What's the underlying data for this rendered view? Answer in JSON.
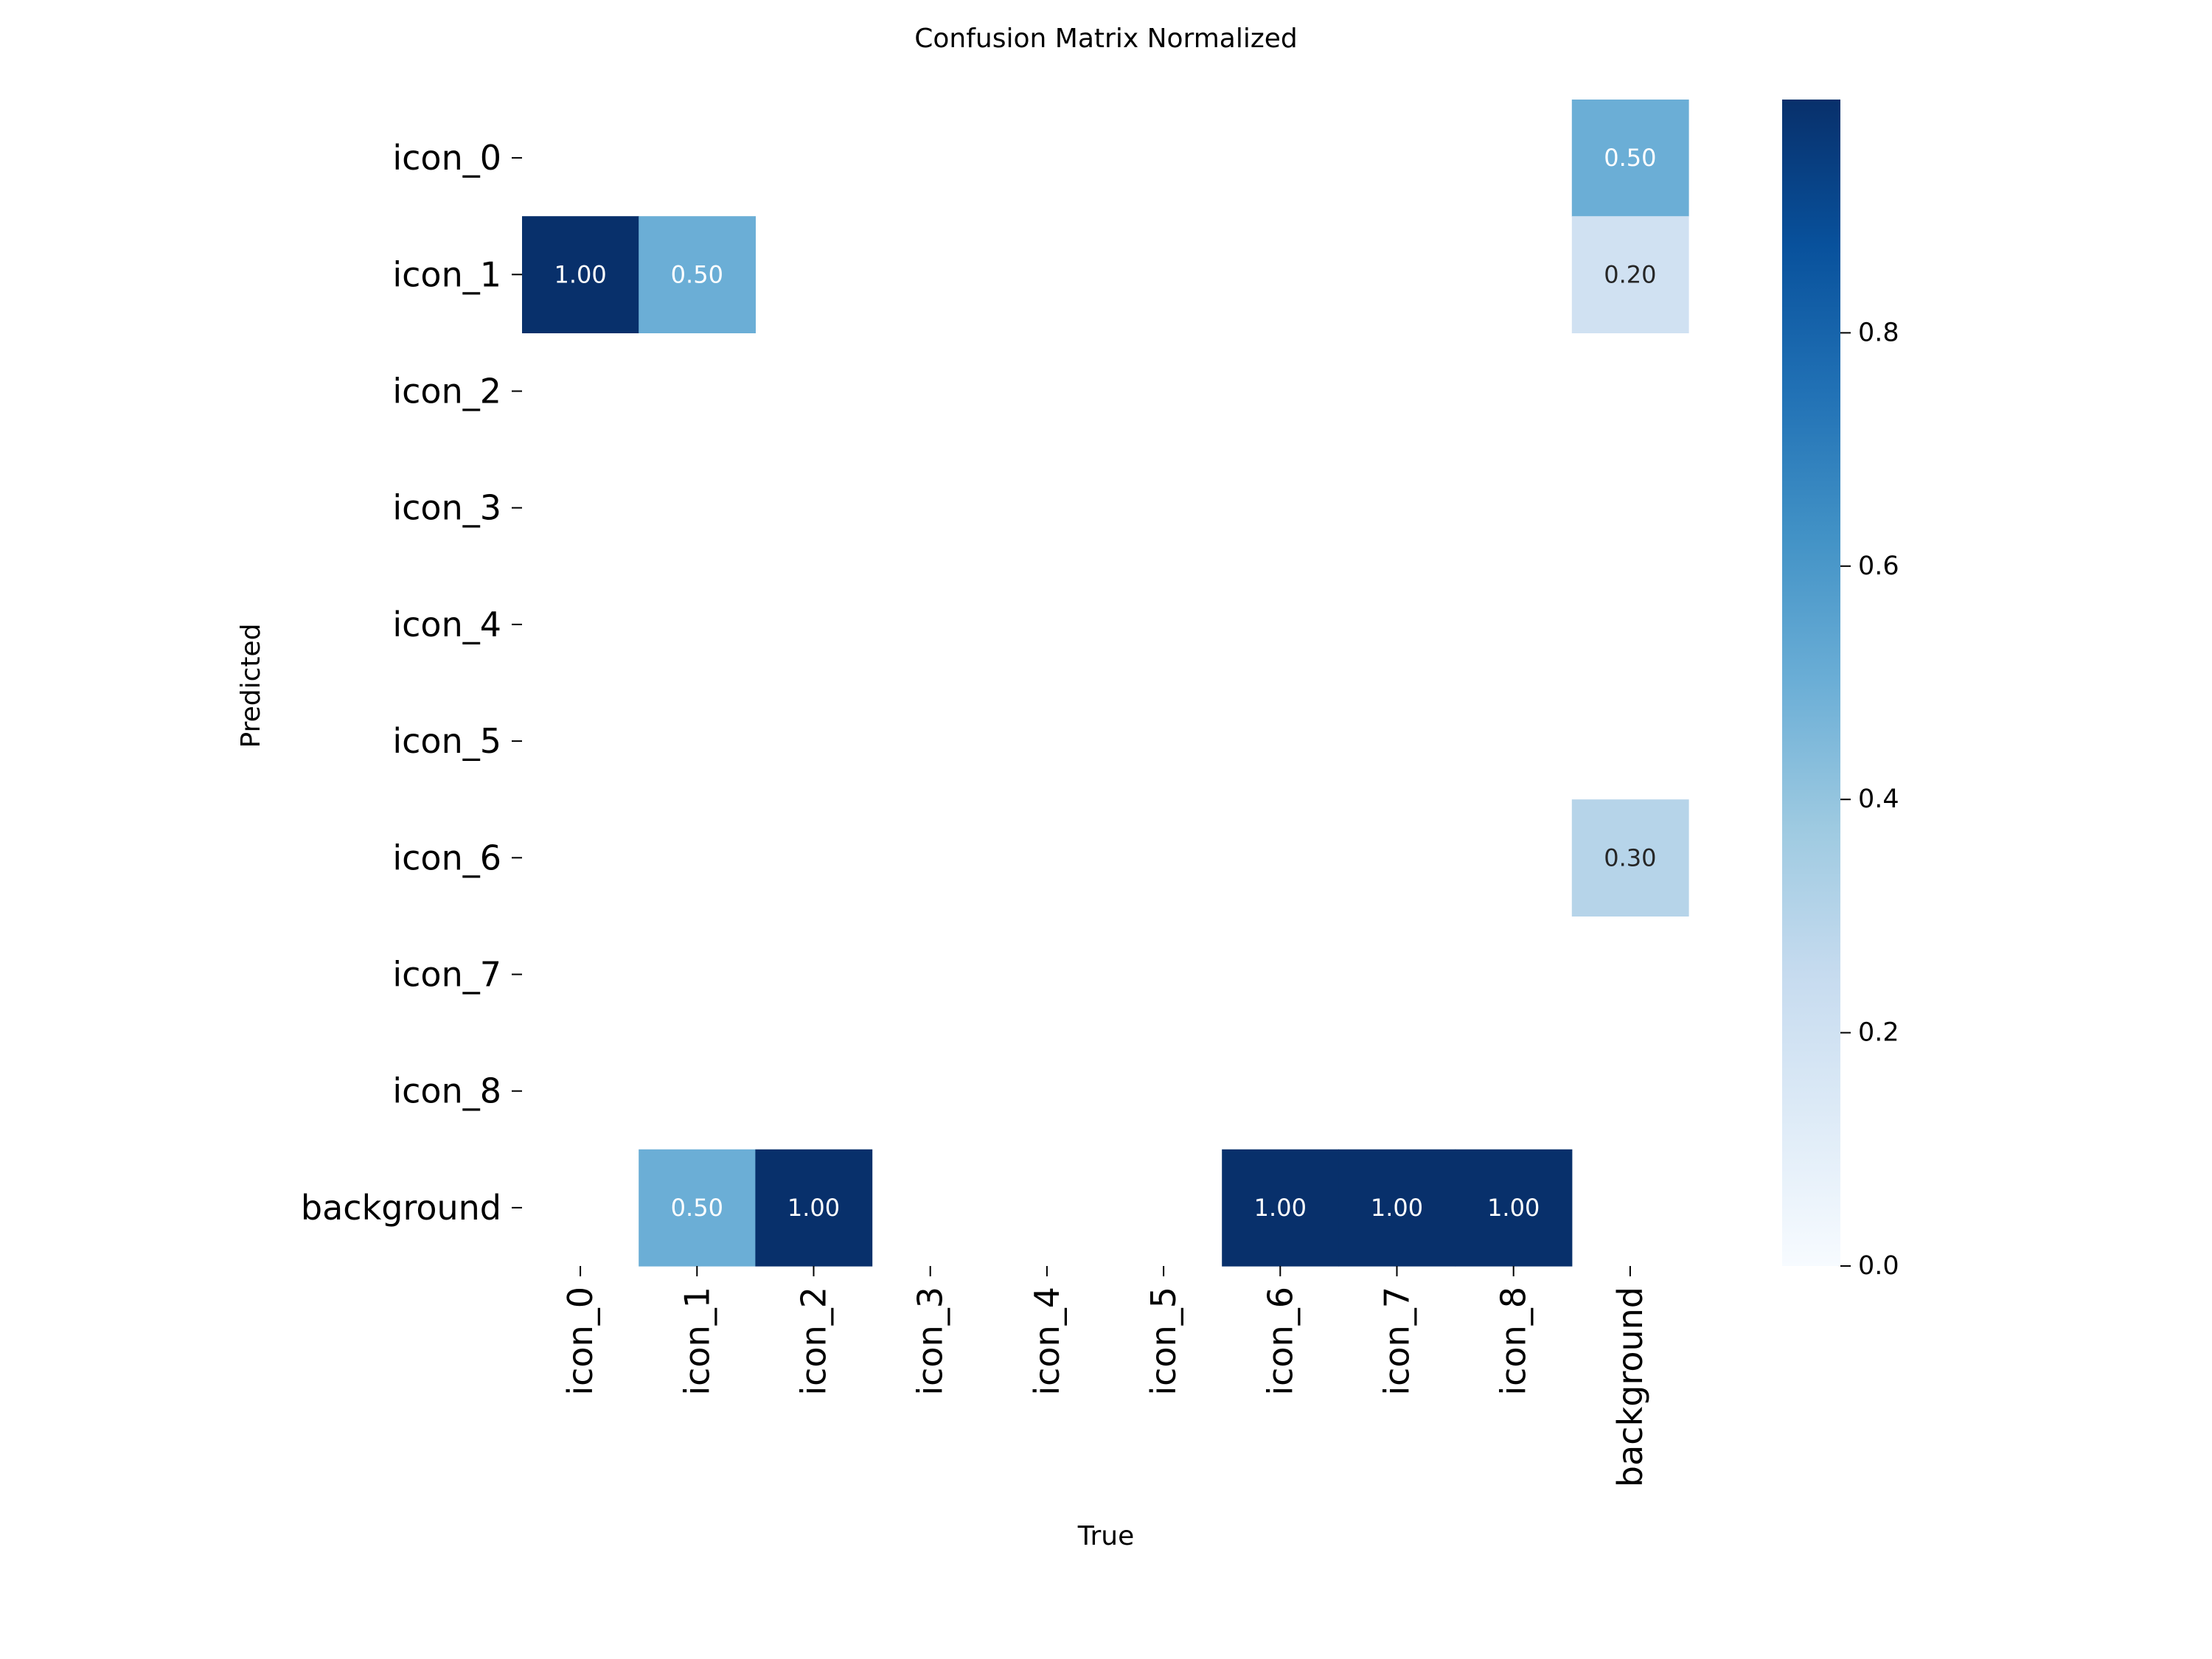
{
  "chart_data": {
    "type": "heatmap",
    "title": "Confusion Matrix Normalized",
    "xlabel": "True",
    "ylabel": "Predicted",
    "x_categories": [
      "icon_0",
      "icon_1",
      "icon_2",
      "icon_3",
      "icon_4",
      "icon_5",
      "icon_6",
      "icon_7",
      "icon_8",
      "background"
    ],
    "y_categories": [
      "icon_0",
      "icon_1",
      "icon_2",
      "icon_3",
      "icon_4",
      "icon_5",
      "icon_6",
      "icon_7",
      "icon_8",
      "background"
    ],
    "values": [
      [
        null,
        null,
        null,
        null,
        null,
        null,
        null,
        null,
        null,
        0.5
      ],
      [
        1.0,
        0.5,
        null,
        null,
        null,
        null,
        null,
        null,
        null,
        0.2
      ],
      [
        null,
        null,
        null,
        null,
        null,
        null,
        null,
        null,
        null,
        null
      ],
      [
        null,
        null,
        null,
        null,
        null,
        null,
        null,
        null,
        null,
        null
      ],
      [
        null,
        null,
        null,
        null,
        null,
        null,
        null,
        null,
        null,
        null
      ],
      [
        null,
        null,
        null,
        null,
        null,
        null,
        null,
        null,
        null,
        null
      ],
      [
        null,
        null,
        null,
        null,
        null,
        null,
        null,
        null,
        null,
        0.3
      ],
      [
        null,
        null,
        null,
        null,
        null,
        null,
        null,
        null,
        null,
        null
      ],
      [
        null,
        null,
        null,
        null,
        null,
        null,
        null,
        null,
        null,
        null
      ],
      [
        null,
        0.5,
        1.0,
        null,
        null,
        null,
        1.0,
        1.0,
        1.0,
        null
      ]
    ],
    "value_format": "0.00",
    "colormap": "Blues",
    "colorbar": {
      "range": [
        0,
        1
      ],
      "ticks": [
        0.0,
        0.2,
        0.4,
        0.6,
        0.8
      ],
      "tick_labels": [
        "0.0",
        "0.2",
        "0.4",
        "0.6",
        "0.8"
      ]
    },
    "grid": false
  }
}
